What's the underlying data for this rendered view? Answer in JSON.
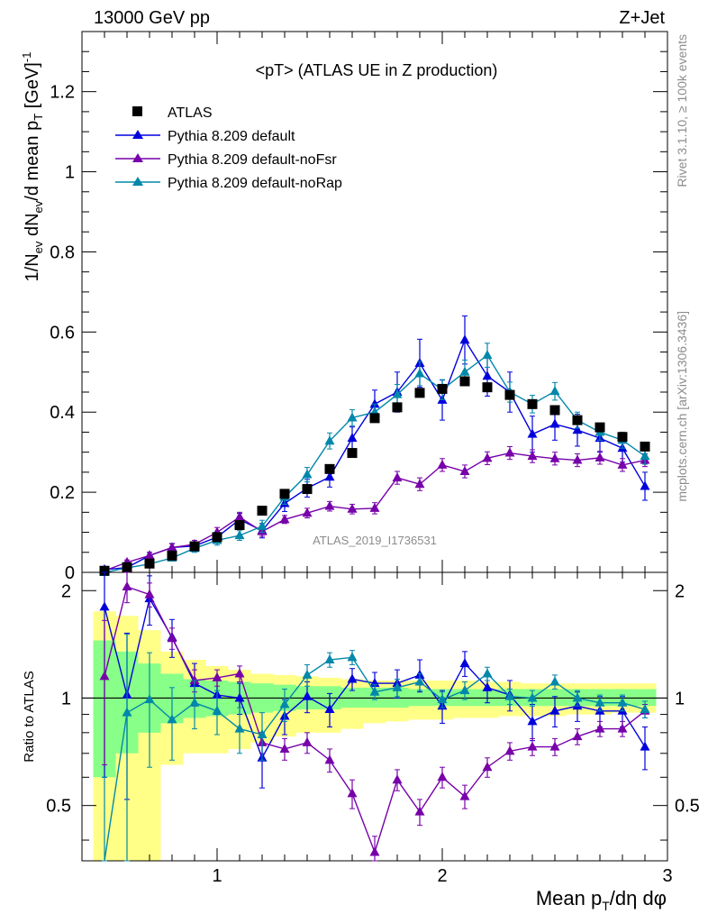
{
  "header": {
    "left": "13000 GeV pp",
    "right": "Z+Jet"
  },
  "side_text": {
    "top": "Rivet 3.1.10, ≥ 100k events",
    "bottom": "mcplots.cern.ch [arXiv:1306.3436]"
  },
  "watermark": "ATLAS_2019_I1736531",
  "colors": {
    "data": "#000000",
    "default": "#0000dd",
    "noFsr": "#7700aa",
    "noRap": "#0088aa",
    "band_outer": "#ffff88",
    "band_inner": "#88ff88"
  },
  "chart_data": [
    {
      "type": "line",
      "panel": "main",
      "title": "<pT> (ATLAS UE in Z production)",
      "ylabel": "1/N_ev dN_ev/d mean p_T [GeV]^-1",
      "xlim": [
        0.4,
        3.0
      ],
      "ylim": [
        0,
        1.35
      ],
      "yticks": [
        0,
        0.2,
        0.4,
        0.6,
        0.8,
        1,
        1.2
      ],
      "ytick_labels": [
        "0",
        "0.2",
        "0.4",
        "0.6",
        "0.8",
        "1",
        "1.2"
      ],
      "x": [
        0.5,
        0.6,
        0.7,
        0.8,
        0.9,
        1.0,
        1.1,
        1.2,
        1.3,
        1.4,
        1.5,
        1.6,
        1.7,
        1.8,
        1.9,
        2.0,
        2.1,
        2.2,
        2.3,
        2.4,
        2.5,
        2.6,
        2.7,
        2.8,
        2.9
      ],
      "legend": [
        "ATLAS",
        "Pythia 8.209 default",
        "Pythia 8.209 default-noFsr",
        "Pythia 8.209 default-noRap"
      ],
      "series": [
        {
          "name": "ATLAS",
          "key": "data",
          "marker": "square",
          "values": [
            0.004,
            0.013,
            0.022,
            0.042,
            0.065,
            0.088,
            0.118,
            0.154,
            0.196,
            0.208,
            0.258,
            0.298,
            0.385,
            0.412,
            0.448,
            0.458,
            0.477,
            0.462,
            0.443,
            0.42,
            0.405,
            0.38,
            0.362,
            0.338,
            0.314
          ]
        },
        {
          "name": "Pythia 8.209 default",
          "key": "default",
          "marker": "triangle",
          "values": [
            0.007,
            0.012,
            0.042,
            0.062,
            0.066,
            0.088,
            0.132,
            0.104,
            0.172,
            0.21,
            0.238,
            0.335,
            0.42,
            0.45,
            0.522,
            0.43,
            0.58,
            0.49,
            0.45,
            0.345,
            0.37,
            0.355,
            0.335,
            0.31,
            0.215
          ],
          "errors": [
            0.005,
            0.005,
            0.008,
            0.01,
            0.01,
            0.012,
            0.015,
            0.018,
            0.02,
            0.022,
            0.025,
            0.028,
            0.035,
            0.05,
            0.06,
            0.05,
            0.06,
            0.05,
            0.05,
            0.045,
            0.04,
            0.04,
            0.035,
            0.035,
            0.035
          ]
        },
        {
          "name": "Pythia 8.209 default-noFsr",
          "key": "noFsr",
          "marker": "triangle",
          "values": [
            0.004,
            0.025,
            0.042,
            0.062,
            0.07,
            0.1,
            0.138,
            0.102,
            0.132,
            0.148,
            0.165,
            0.158,
            0.16,
            0.236,
            0.22,
            0.268,
            0.252,
            0.285,
            0.298,
            0.29,
            0.284,
            0.28,
            0.286,
            0.268,
            0.28
          ],
          "errors": [
            0.004,
            0.006,
            0.008,
            0.009,
            0.01,
            0.012,
            0.012,
            0.012,
            0.01,
            0.012,
            0.012,
            0.012,
            0.014,
            0.016,
            0.016,
            0.016,
            0.016,
            0.016,
            0.016,
            0.016,
            0.016,
            0.016,
            0.016,
            0.016,
            0.016
          ]
        },
        {
          "name": "Pythia 8.209 default-noRap",
          "key": "noRap",
          "marker": "triangle",
          "values": [
            0.0,
            0.011,
            0.021,
            0.036,
            0.06,
            0.08,
            0.092,
            0.115,
            0.188,
            0.244,
            0.328,
            0.386,
            0.4,
            0.444,
            0.496,
            0.456,
            0.5,
            0.542,
            0.45,
            0.42,
            0.452,
            0.38,
            0.35,
            0.33,
            0.29
          ],
          "errors": [
            0.003,
            0.005,
            0.007,
            0.008,
            0.01,
            0.012,
            0.012,
            0.015,
            0.018,
            0.018,
            0.02,
            0.02,
            0.02,
            0.025,
            0.03,
            0.025,
            0.03,
            0.03,
            0.025,
            0.022,
            0.022,
            0.02,
            0.02,
            0.02,
            0.02
          ]
        }
      ]
    },
    {
      "type": "line",
      "panel": "ratio",
      "ylabel": "Ratio to ATLAS",
      "xlabel": "Mean p_T/dη dφ",
      "xlim": [
        0.4,
        3.0
      ],
      "ylim": [
        0.35,
        2.25
      ],
      "yticks": [
        0.5,
        1,
        2
      ],
      "ytick_labels": [
        "0.5",
        "1",
        "2"
      ],
      "xticks": [
        1,
        2,
        3
      ],
      "xtick_labels": [
        "1",
        "2",
        "3"
      ],
      "x": [
        0.5,
        0.6,
        0.7,
        0.8,
        0.9,
        1.0,
        1.1,
        1.2,
        1.3,
        1.4,
        1.5,
        1.6,
        1.7,
        1.8,
        1.9,
        2.0,
        2.1,
        2.2,
        2.3,
        2.4,
        2.5,
        2.6,
        2.7,
        2.8,
        2.9
      ],
      "band_outer": {
        "low": [
          0.35,
          0.35,
          0.35,
          0.65,
          0.7,
          0.7,
          0.72,
          0.75,
          0.78,
          0.8,
          0.8,
          0.82,
          0.85,
          0.86,
          0.87,
          0.87,
          0.88,
          0.88,
          0.89,
          0.89,
          0.89,
          0.9,
          0.9,
          0.91,
          0.91
        ],
        "high": [
          1.75,
          1.7,
          1.55,
          1.35,
          1.28,
          1.23,
          1.2,
          1.17,
          1.16,
          1.15,
          1.14,
          1.13,
          1.12,
          1.12,
          1.12,
          1.12,
          1.12,
          1.11,
          1.11,
          1.1,
          1.1,
          1.1,
          1.1,
          1.1,
          1.1
        ]
      },
      "band_inner": {
        "low": [
          0.6,
          0.7,
          0.8,
          0.85,
          0.88,
          0.89,
          0.9,
          0.91,
          0.92,
          0.93,
          0.93,
          0.94,
          0.94,
          0.94,
          0.95,
          0.95,
          0.95,
          0.95,
          0.95,
          0.95,
          0.95,
          0.95,
          0.95,
          0.95,
          0.95
        ],
        "high": [
          1.45,
          1.35,
          1.25,
          1.17,
          1.13,
          1.12,
          1.11,
          1.1,
          1.09,
          1.08,
          1.08,
          1.07,
          1.07,
          1.07,
          1.06,
          1.06,
          1.06,
          1.06,
          1.06,
          1.06,
          1.06,
          1.06,
          1.06,
          1.06,
          1.06
        ]
      },
      "series": [
        {
          "name": "Pythia 8.209 default",
          "key": "default",
          "values": [
            1.8,
            1.02,
            1.9,
            1.48,
            1.1,
            1.02,
            1.0,
            0.68,
            0.89,
            1.01,
            0.93,
            1.13,
            1.1,
            1.1,
            1.16,
            0.95,
            1.25,
            1.07,
            1.02,
            0.86,
            0.92,
            0.95,
            0.92,
            0.92,
            0.73
          ],
          "errors": [
            1.2,
            0.5,
            0.3,
            0.18,
            0.15,
            0.12,
            0.1,
            0.12,
            0.1,
            0.1,
            0.1,
            0.08,
            0.08,
            0.1,
            0.12,
            0.1,
            0.1,
            0.1,
            0.1,
            0.1,
            0.09,
            0.09,
            0.09,
            0.09,
            0.1
          ]
        },
        {
          "name": "Pythia 8.209 default-noFsr",
          "key": "noFsr",
          "values": [
            1.15,
            2.05,
            1.95,
            1.47,
            1.12,
            1.14,
            1.17,
            0.75,
            0.72,
            0.75,
            0.67,
            0.54,
            0.37,
            0.59,
            0.48,
            0.6,
            0.53,
            0.64,
            0.71,
            0.73,
            0.73,
            0.78,
            0.82,
            0.82,
            0.92
          ],
          "errors": [
            0.5,
            0.2,
            0.15,
            0.1,
            0.08,
            0.06,
            0.06,
            0.05,
            0.05,
            0.05,
            0.05,
            0.05,
            0.04,
            0.04,
            0.04,
            0.04,
            0.04,
            0.04,
            0.04,
            0.04,
            0.04,
            0.04,
            0.04,
            0.04,
            0.04
          ]
        },
        {
          "name": "Pythia 8.209 default-noRap",
          "key": "noRap",
          "values": [
            0.0,
            0.91,
            0.99,
            0.87,
            0.97,
            0.92,
            0.82,
            0.79,
            0.96,
            1.16,
            1.28,
            1.3,
            1.04,
            1.07,
            1.11,
            0.99,
            1.05,
            1.17,
            1.01,
            1.0,
            1.11,
            1.0,
            0.97,
            0.97,
            0.93
          ],
          "errors": [
            0.6,
            0.6,
            0.35,
            0.2,
            0.15,
            0.13,
            0.12,
            0.12,
            0.1,
            0.08,
            0.06,
            0.06,
            0.05,
            0.06,
            0.06,
            0.05,
            0.06,
            0.05,
            0.05,
            0.05,
            0.05,
            0.05,
            0.05,
            0.05,
            0.05
          ]
        }
      ]
    }
  ]
}
